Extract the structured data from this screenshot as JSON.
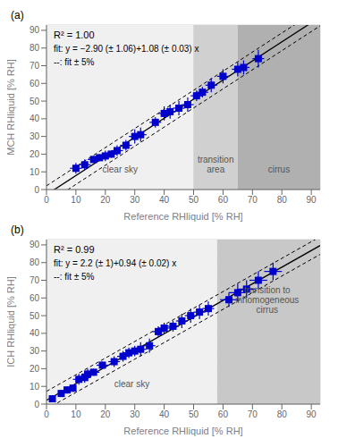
{
  "chart_data": [
    {
      "type": "scatter",
      "title": "(a)",
      "x_label": "Reference RHliquid [% RH]",
      "y_label": "MCH RHliquid [% RH]",
      "xlim": [
        0,
        93
      ],
      "ylim": [
        0,
        93
      ],
      "xticks": [
        0,
        10,
        20,
        30,
        40,
        50,
        60,
        70,
        80,
        90
      ],
      "yticks": [
        0,
        10,
        20,
        30,
        40,
        50,
        60,
        70,
        80,
        90
      ],
      "grid": true,
      "color": "#0000cc",
      "marker": "square",
      "x": [
        10,
        13,
        16,
        18,
        20,
        22,
        24,
        27,
        30,
        32,
        37,
        40,
        42,
        45,
        48,
        51,
        53,
        56,
        60,
        65,
        67,
        72
      ],
      "values": [
        12,
        14,
        17,
        18,
        19,
        20,
        22,
        25,
        30,
        31,
        38,
        43,
        44,
        46,
        48,
        53,
        55,
        59,
        64,
        68,
        69,
        74
      ],
      "xerr": [
        2,
        2,
        2,
        2,
        2,
        2,
        2,
        2,
        2,
        2,
        2,
        2,
        2,
        2,
        2,
        2,
        2,
        2,
        2,
        2,
        2,
        2
      ],
      "yerr": [
        3,
        3,
        2,
        2,
        3,
        2,
        3,
        3,
        4,
        4,
        3,
        4,
        4,
        4,
        4,
        3,
        3,
        4,
        4,
        4,
        4,
        5
      ],
      "lines": [
        {
          "x": [
            0,
            93
          ],
          "values": [
            -2.9,
            97.54
          ],
          "color": "#000000",
          "line_style": "solid"
        },
        {
          "x": [
            0,
            93
          ],
          "values": [
            2.1,
            102.54
          ],
          "color": "#000000",
          "line_style": "dashed"
        },
        {
          "x": [
            0,
            93
          ],
          "values": [
            -7.9,
            92.54
          ],
          "color": "#000000",
          "line_style": "dashed"
        }
      ],
      "regions": [
        {
          "x": [
            0,
            50
          ],
          "color": "#f0f0f0"
        },
        {
          "x": [
            50,
            65
          ],
          "color": "#d0d0d0"
        },
        {
          "x": [
            65,
            93
          ],
          "color": "#b0b0b0"
        }
      ],
      "region_labels": [
        {
          "x": 25,
          "y": 8,
          "text": "clear sky"
        },
        {
          "x": 57.5,
          "y": 8,
          "text": "transition\narea"
        },
        {
          "x": 79,
          "y": 8,
          "text": "cirrus"
        }
      ],
      "annotations": [
        "R² = 1.00",
        "fit: y = −2.90 (± 1.06)+1.08 (± 0.03) x",
        "--: fit ± 5%"
      ]
    },
    {
      "type": "scatter",
      "title": "(b)",
      "x_label": "Reference RHliquid [% RH]",
      "y_label": "ICH RHliquid [% RH]",
      "xlim": [
        0,
        93
      ],
      "ylim": [
        0,
        93
      ],
      "xticks": [
        0,
        10,
        20,
        30,
        40,
        50,
        60,
        70,
        80,
        90
      ],
      "yticks": [
        0,
        10,
        20,
        30,
        40,
        50,
        60,
        70,
        80,
        90
      ],
      "grid": true,
      "color": "#0000cc",
      "marker": "square",
      "x": [
        2,
        5,
        7,
        9,
        11,
        13,
        14,
        16,
        19,
        23,
        26,
        28,
        30,
        32,
        35,
        38,
        40,
        43,
        46,
        49,
        52,
        55,
        62,
        65,
        68,
        72,
        77
      ],
      "values": [
        3,
        6,
        8,
        9,
        14,
        15,
        17,
        18,
        22,
        24,
        27,
        29,
        30,
        31,
        33,
        41,
        43,
        44,
        47,
        50,
        52,
        54,
        59,
        63,
        65,
        70,
        75
      ],
      "xerr": [
        1,
        1,
        1,
        1,
        2,
        2,
        2,
        2,
        2,
        2,
        2,
        2,
        2,
        2,
        2,
        2,
        2,
        2,
        2,
        2,
        2,
        2,
        3,
        3,
        3,
        3,
        3
      ],
      "yerr": [
        2,
        2,
        2,
        2,
        3,
        3,
        3,
        2,
        2,
        3,
        3,
        3,
        3,
        4,
        4,
        3,
        3,
        3,
        4,
        4,
        4,
        4,
        4,
        5,
        5,
        5,
        5
      ],
      "lines": [
        {
          "x": [
            0,
            93
          ],
          "values": [
            2.2,
            89.62
          ],
          "color": "#000000",
          "line_style": "solid"
        },
        {
          "x": [
            0,
            93
          ],
          "values": [
            7.2,
            94.62
          ],
          "color": "#000000",
          "line_style": "dashed"
        },
        {
          "x": [
            0,
            93
          ],
          "values": [
            -2.8,
            84.62
          ],
          "color": "#000000",
          "line_style": "dashed"
        }
      ],
      "regions": [
        {
          "x": [
            0,
            58
          ],
          "color": "#f0f0f0"
        },
        {
          "x": [
            58,
            93
          ],
          "color": "#c8c8c8"
        }
      ],
      "region_labels": [
        {
          "x": 29,
          "y": 8,
          "text": "clear sky"
        },
        {
          "x": 75,
          "y": 50,
          "text": "transition to\ninhomogeneous\ncirrus"
        }
      ],
      "annotations": [
        "R² = 0.99",
        "fit: y = 2.2 (± 1)+0.94 (± 0.02) x",
        "--: fit ± 5%"
      ]
    }
  ]
}
